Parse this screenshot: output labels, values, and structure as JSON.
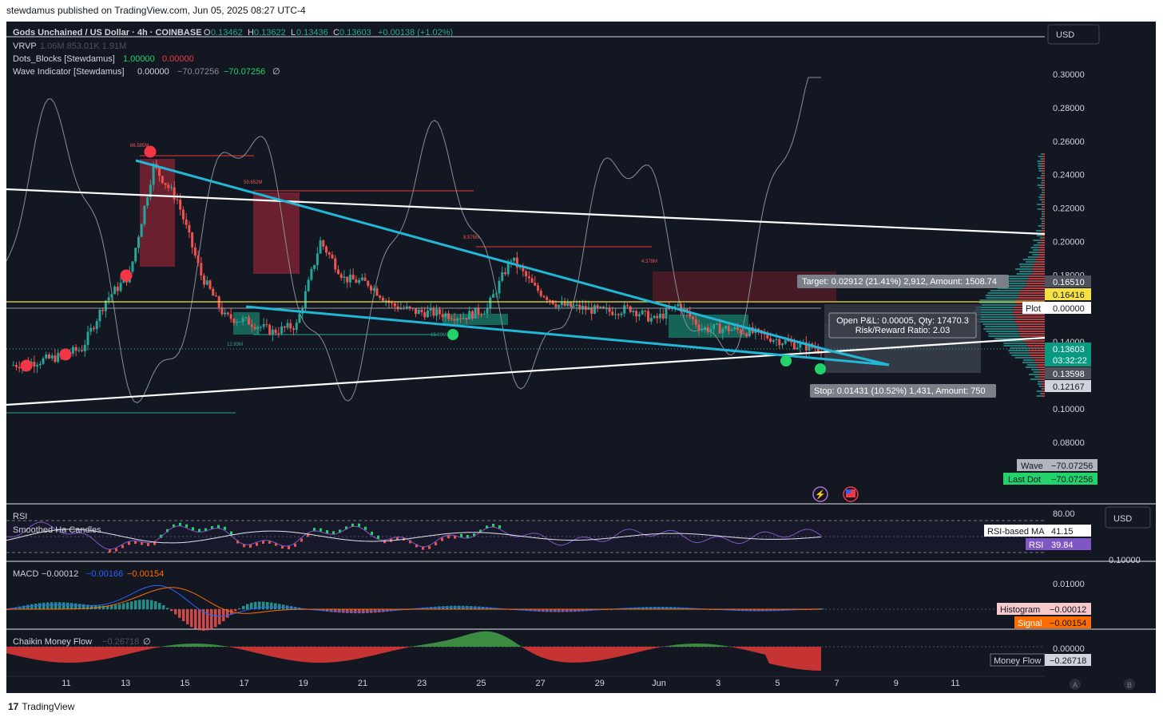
{
  "publisher": "stewdamus published on TradingView.com, Jun 05, 2025 08:27 UTC-4",
  "brand": "TradingView",
  "symbol_title": "Gods Unchained / US Dollar · 4h · COINBASE",
  "ohlc": {
    "o_label": "O",
    "o": "0.13462",
    "h_label": "H",
    "h": "0.13622",
    "l_label": "L",
    "l": "0.13436",
    "c_label": "C",
    "c": "0.13603",
    "change": "+0.00138 (+1.02%)"
  },
  "indicators": {
    "vrvp": {
      "name": "VRVP",
      "values": "1.06M  853.01K  1.91M"
    },
    "dots": {
      "name": "Dots_Blocks [Stewdamus]",
      "v1": "1.00000",
      "v2": "0.00000"
    },
    "wave": {
      "name": "Wave Indicator [Stewdamus]",
      "v1": "0.00000",
      "v2": "−70.07256",
      "v3": "−70.07256",
      "v4": "∅"
    }
  },
  "currency": "USD",
  "price_axis_ticks": [
    "0.30000",
    "0.28000",
    "0.26000",
    "0.24000",
    "0.22000",
    "0.20000",
    "0.18000",
    "0.14000",
    "0.10000",
    "0.08000"
  ],
  "price_tags": {
    "t1": "0.16510",
    "t2": "0.16416",
    "plot_label": "Plot",
    "plot_value": "0.00000",
    "last": "0.13603",
    "countdown": "03:32:22",
    "t3": "0.13598",
    "t4": "0.12167",
    "wave_label": "Wave",
    "wave_value": "−70.07256",
    "lastdot_label": "Last Dot",
    "lastdot_value": "−70.07256"
  },
  "position": {
    "target": "Target: 0.02912 (21.41%) 2,912, Amount: 1508.74",
    "open_pl": "Open P&L: 0.00005, Qty: 17470.3",
    "rr": "Risk/Reward Ratio: 2.03",
    "stop": "Stop: 0.01431 (10.52%) 1,431, Amount: 750"
  },
  "volume_block_labels": [
    "66.585M",
    "59.652M",
    "8.575M",
    "4.378M",
    "12.93M",
    "15.69M"
  ],
  "rsi_pane": {
    "rsi_label": "RSI",
    "ha_label": "Smoothed Ha Candles",
    "tick_top": "80.00",
    "tick_bottom": "0.10000",
    "ma_label": "RSI-based MA",
    "ma_value": "41.15",
    "rsi_tag": "RSI",
    "rsi_value": "39.84",
    "currency": "USD"
  },
  "macd_pane": {
    "label": "MACD",
    "v1": "−0.00012",
    "v2": "−0.00166",
    "v3": "−0.00154",
    "tick": "0.01000",
    "hist_label": "Histogram",
    "hist_value": "−0.00012",
    "signal_label": "Signal",
    "signal_value": "−0.00154"
  },
  "cmf_pane": {
    "label": "Chaikin Money Flow",
    "v1": "−0.26718",
    "v2": "∅",
    "tick": "0.00000",
    "mf_label": "Money Flow",
    "mf_value": "−0.26718"
  },
  "time_axis": [
    "11",
    "13",
    "15",
    "17",
    "19",
    "21",
    "23",
    "25",
    "27",
    "29",
    "Jun",
    "3",
    "5",
    "7",
    "9",
    "11"
  ],
  "axis_buttons": [
    "A",
    "B"
  ],
  "chart_data": {
    "type": "candlestick",
    "symbol": "GODS/USD",
    "interval": "4h",
    "yaxis_range": [
      0.07,
      0.31
    ],
    "candles_close_path_date_values": [
      [
        "May 9",
        0.126
      ],
      [
        "May 10",
        0.128
      ],
      [
        "May 11",
        0.131
      ],
      [
        "May 12",
        0.136
      ],
      [
        "May 12.5",
        0.165
      ],
      [
        "May 13",
        0.18
      ],
      [
        "May 13.5",
        0.245
      ],
      [
        "May 14",
        0.225
      ],
      [
        "May 14.5",
        0.18
      ],
      [
        "May 15",
        0.155
      ],
      [
        "May 16",
        0.152
      ],
      [
        "May 16.5",
        0.146
      ],
      [
        "May 17",
        0.15
      ],
      [
        "May 17.5",
        0.2
      ],
      [
        "May 18",
        0.178
      ],
      [
        "May 19",
        0.175
      ],
      [
        "May 20",
        0.162
      ],
      [
        "May 21",
        0.158
      ],
      [
        "May 22",
        0.157
      ],
      [
        "May 23",
        0.155
      ],
      [
        "May 24",
        0.16
      ],
      [
        "May 24.5",
        0.19
      ],
      [
        "May 25",
        0.172
      ],
      [
        "May 26",
        0.162
      ],
      [
        "May 27",
        0.16
      ],
      [
        "May 28",
        0.158
      ],
      [
        "May 29",
        0.16
      ],
      [
        "May 30",
        0.153
      ],
      [
        "May 30.5",
        0.162
      ],
      [
        "May 31",
        0.148
      ],
      [
        "Jun 1",
        0.148
      ],
      [
        "Jun 2",
        0.146
      ],
      [
        "Jun 3",
        0.142
      ],
      [
        "Jun 4",
        0.138
      ],
      [
        "Jun 5",
        0.136
      ]
    ],
    "last_close": 0.13603
  }
}
